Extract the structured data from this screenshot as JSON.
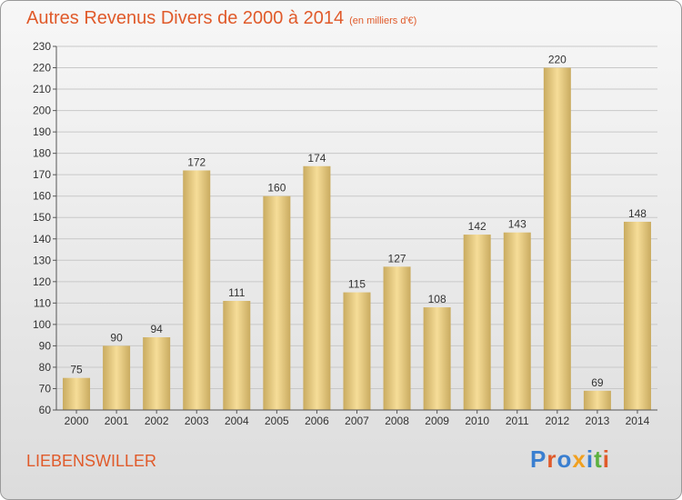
{
  "header": {
    "title": "Autres Revenus Divers de 2000 à 2014",
    "unit": "(en milliers d'€)"
  },
  "footer": {
    "commune": "LIEBENSWILLER",
    "logo": "Proxiti"
  },
  "colors": {
    "accent": "#e05a2a",
    "bar_light": "#f6dd98",
    "bar_dark": "#c9ab60",
    "logo": [
      "#3a7fd0",
      "#e05a2a",
      "#3a7fd0",
      "#f0a020",
      "#3a7fd0",
      "#5cb040",
      "#e05a2a"
    ]
  },
  "chart_data": {
    "type": "bar",
    "title": "Autres Revenus Divers de 2000 à 2014",
    "subtitle": "(en milliers d'€)",
    "categories": [
      "2000",
      "2001",
      "2002",
      "2003",
      "2004",
      "2005",
      "2006",
      "2007",
      "2008",
      "2009",
      "2010",
      "2011",
      "2012",
      "2013",
      "2014"
    ],
    "values": [
      75,
      90,
      94,
      172,
      111,
      160,
      174,
      115,
      127,
      108,
      142,
      143,
      220,
      69,
      148
    ],
    "ylim": [
      60,
      230
    ],
    "yticks": [
      60,
      70,
      80,
      90,
      100,
      110,
      120,
      130,
      140,
      150,
      160,
      170,
      180,
      190,
      200,
      210,
      220,
      230
    ],
    "grid": true,
    "legend": "none"
  }
}
